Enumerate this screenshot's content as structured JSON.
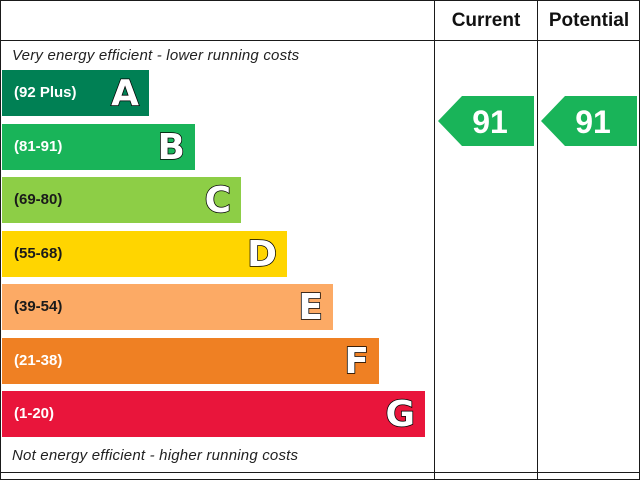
{
  "header": {
    "current_label": "Current",
    "potential_label": "Potential"
  },
  "captions": {
    "top": "Very energy efficient - lower running costs",
    "bottom": "Not energy efficient - higher running costs"
  },
  "chart_data": {
    "type": "bar",
    "categories": [
      "A",
      "B",
      "C",
      "D",
      "E",
      "F",
      "G"
    ],
    "bands": [
      {
        "letter": "A",
        "range": "(92 Plus)",
        "min": 92,
        "max": 100,
        "color": "#008054"
      },
      {
        "letter": "B",
        "range": "(81-91)",
        "min": 81,
        "max": 91,
        "color": "#19b459"
      },
      {
        "letter": "C",
        "range": "(69-80)",
        "min": 69,
        "max": 80,
        "color": "#8dce46"
      },
      {
        "letter": "D",
        "range": "(55-68)",
        "min": 55,
        "max": 68,
        "color": "#ffd500"
      },
      {
        "letter": "E",
        "range": "(39-54)",
        "min": 39,
        "max": 54,
        "color": "#fcaa65"
      },
      {
        "letter": "F",
        "range": "(21-38)",
        "min": 21,
        "max": 38,
        "color": "#ef8023"
      },
      {
        "letter": "G",
        "range": "(1-20)",
        "min": 1,
        "max": 20,
        "color": "#e9153b"
      }
    ],
    "current": {
      "value": 91,
      "band": "B",
      "color": "#19b459"
    },
    "potential": {
      "value": 91,
      "band": "B",
      "color": "#19b459"
    }
  }
}
